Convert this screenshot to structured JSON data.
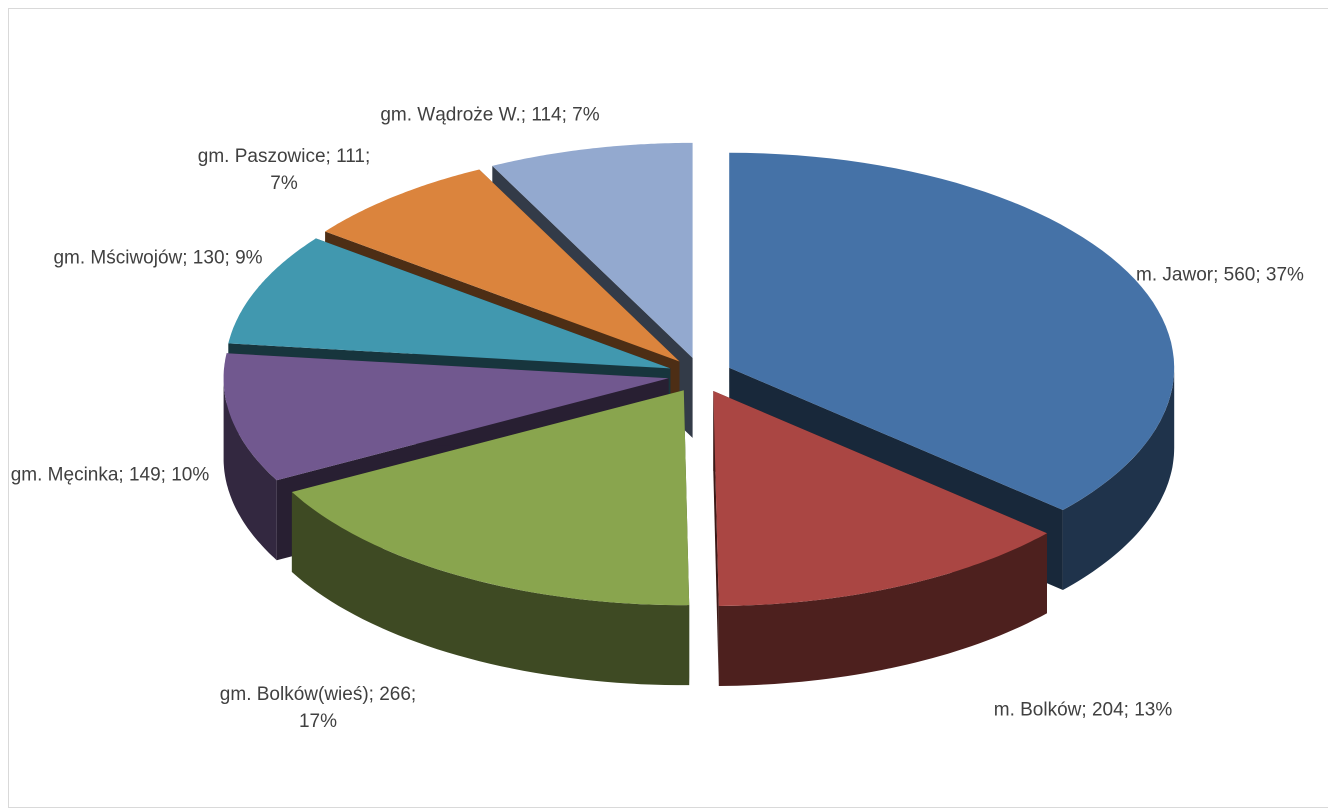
{
  "chart_data": {
    "type": "pie3d",
    "values": [
      560,
      204,
      266,
      149,
      130,
      111,
      114
    ],
    "value_labels": [
      "m. Jawor; 560; 37%",
      "m. Bolków; 204; 13%",
      "gm. Bolków(wieś); 266; 17%",
      "gm. Męcinka; 149; 10%",
      "gm. Mściwojów; 130; 9%",
      "gm. Paszowice; 111; 7%",
      "gm. Wądroże W.; 114; 7%"
    ],
    "colors": [
      "#4572a7",
      "#aa4643",
      "#89a54e",
      "#71588f",
      "#4198af",
      "#db843d",
      "#93a9cf"
    ]
  }
}
